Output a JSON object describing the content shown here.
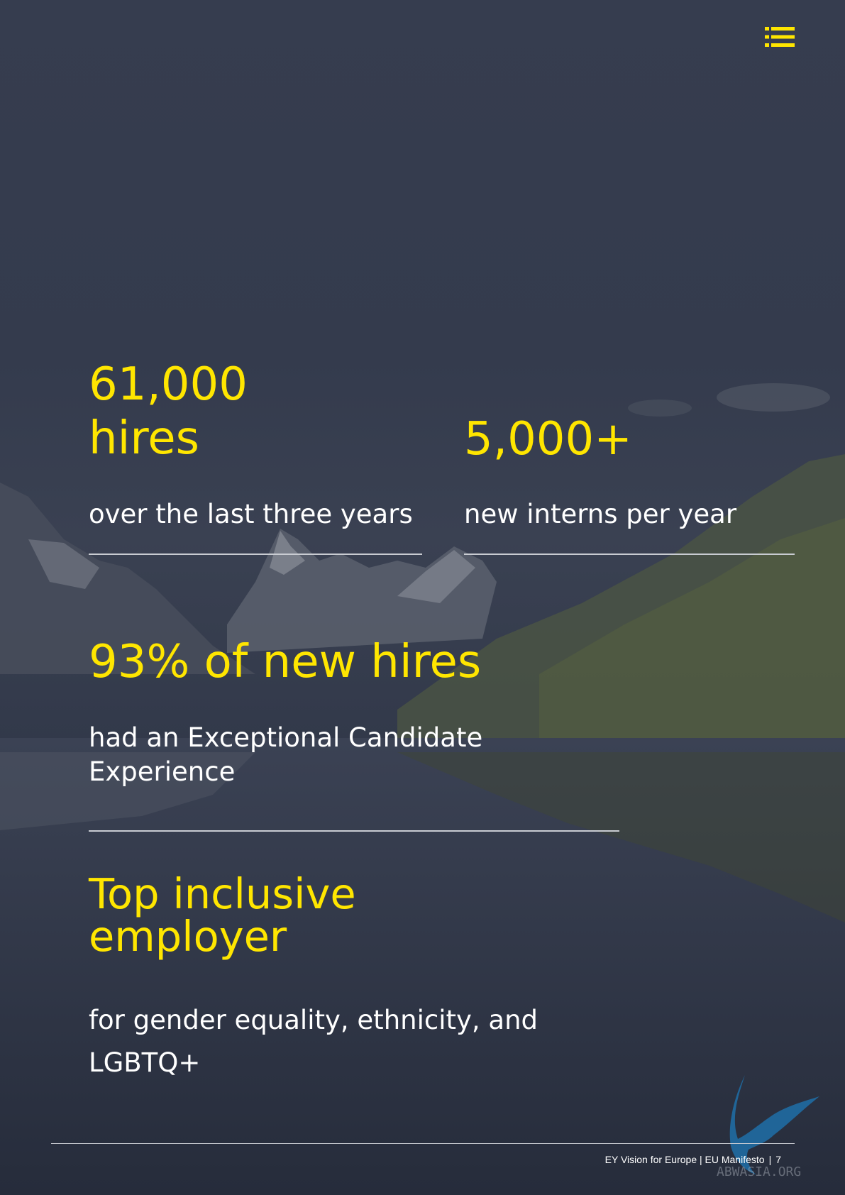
{
  "colors": {
    "accent": "#ffe600",
    "text": "#ffffff",
    "rule": "#c9ccd2",
    "background": "#343b4d"
  },
  "menu": {
    "icon": "list-menu-icon"
  },
  "stats": {
    "hires": {
      "number": "61,000\nhires",
      "description": "over the last three years"
    },
    "interns": {
      "number": "5,000+",
      "description": "new interns per year"
    },
    "candidate": {
      "number": "93% of new hires",
      "description": "had an Exceptional Candidate Experience"
    },
    "inclusive": {
      "title": "Top inclusive employer",
      "description": "for gender equality, ethnicity, and LGBTQ+"
    }
  },
  "footer": {
    "publication": "EY Vision for Europe | EU Manifesto",
    "separator": "|",
    "page_number": "7"
  },
  "watermark": {
    "text": "ABWASIA.ORG",
    "icon": "bird-logo-icon"
  }
}
